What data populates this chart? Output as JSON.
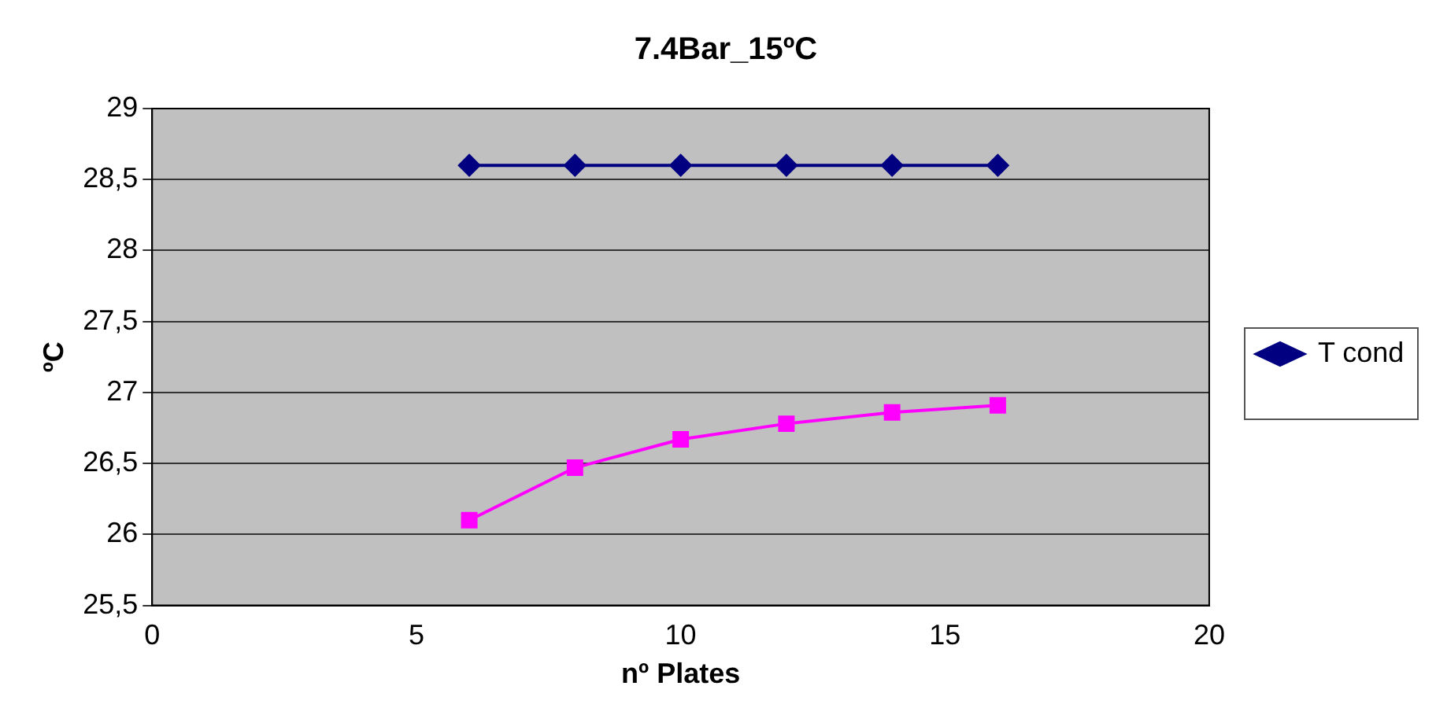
{
  "chart_data": {
    "type": "line",
    "title": "7.4Bar_15ºC",
    "xlabel": "nº Plates",
    "ylabel": "ºC",
    "x": [
      6,
      8,
      10,
      12,
      14,
      16
    ],
    "series": [
      {
        "name": "T cond",
        "color": "#000080",
        "marker": "diamond",
        "values": [
          28.6,
          28.6,
          28.6,
          28.6,
          28.6,
          28.6
        ]
      },
      {
        "color": "#ff00ff",
        "marker": "square",
        "values": [
          26.1,
          26.47,
          26.67,
          26.78,
          26.86,
          26.91
        ]
      }
    ],
    "xlim": [
      0,
      20
    ],
    "xticks": [
      0,
      5,
      10,
      15,
      20
    ],
    "ylim": [
      25.5,
      29
    ],
    "yticks": [
      {
        "value": 25.5,
        "label": "25,5"
      },
      26,
      {
        "value": 26.5,
        "label": "26,5"
      },
      27,
      {
        "value": 27.5,
        "label": "27,5"
      },
      28,
      {
        "value": 28.5,
        "label": "28,5"
      },
      29
    ],
    "grid": "y",
    "legend": "right"
  }
}
